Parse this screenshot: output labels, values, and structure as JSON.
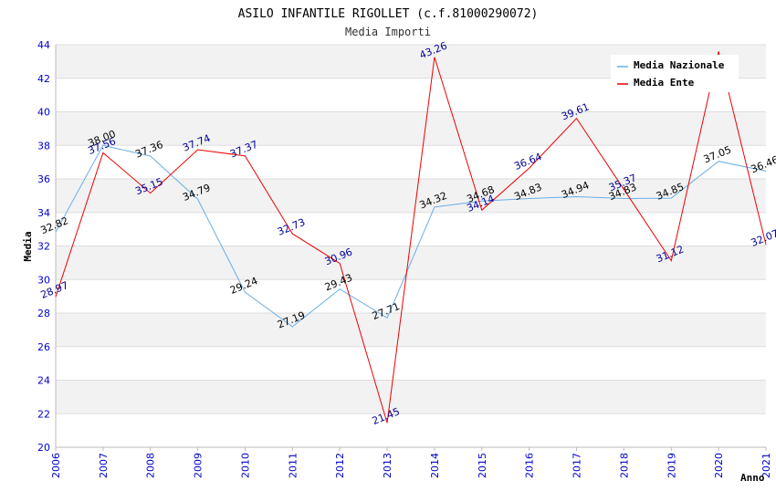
{
  "chart_data": {
    "type": "line",
    "title": "ASILO INFANTILE RIGOLLET (c.f.81000290072)",
    "subtitle": "Media Importi",
    "xlabel": "Anno",
    "ylabel": "Media",
    "ylim": [
      20,
      44
    ],
    "yticks": [
      20,
      22,
      24,
      26,
      28,
      30,
      32,
      34,
      36,
      38,
      40,
      42,
      44
    ],
    "x": [
      "2006",
      "2007",
      "2008",
      "2009",
      "2010",
      "2011",
      "2012",
      "2013",
      "2014",
      "2015",
      "2016",
      "2017",
      "2018",
      "2019",
      "2020",
      "2021"
    ],
    "legend_position": "top-right",
    "grid": true,
    "series": [
      {
        "name": "Media Nazionale",
        "color": "#6aaee6",
        "values": [
          32.82,
          38.0,
          37.36,
          34.79,
          29.24,
          27.19,
          29.43,
          27.71,
          34.32,
          34.68,
          34.83,
          34.94,
          34.83,
          34.85,
          37.05,
          36.46
        ],
        "labels": [
          "32.82",
          "38.00",
          "37.36",
          "34.79",
          "29.24",
          "27.19",
          "29.43",
          "27.71",
          "34.32",
          "34.68",
          "34.83",
          "34.94",
          "34.83",
          "34.85",
          "37.05",
          "36.46"
        ]
      },
      {
        "name": "Media Ente",
        "color": "#ee0000",
        "values": [
          28.97,
          37.56,
          35.15,
          37.74,
          37.37,
          32.73,
          30.96,
          21.45,
          43.26,
          34.14,
          36.64,
          39.61,
          35.37,
          31.12,
          43.6,
          32.07
        ],
        "labels": [
          "28.97",
          "37.56",
          "35.15",
          "37.74",
          "37.37",
          "32.73",
          "30.96",
          "21.45",
          "43.26",
          "34.14",
          "36.64",
          "39.61",
          "35.37",
          "31.12",
          "",
          "32.07"
        ]
      }
    ]
  }
}
